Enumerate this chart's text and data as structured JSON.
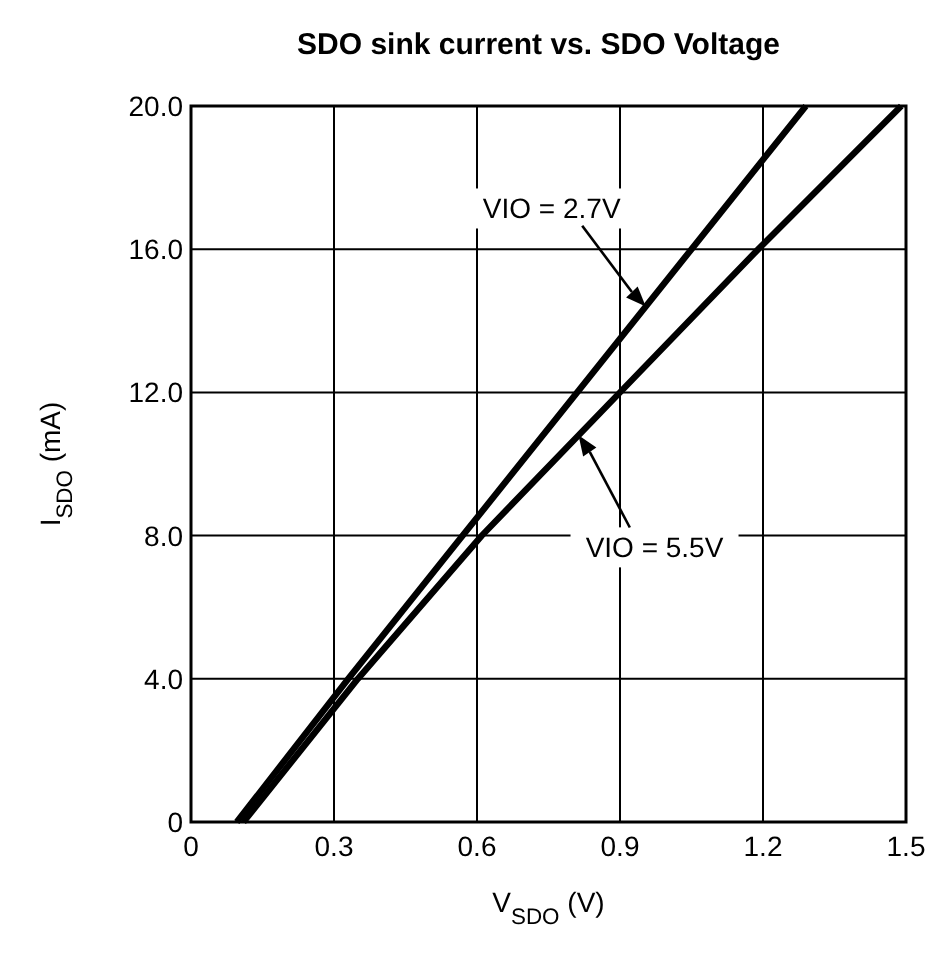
{
  "chart_data": {
    "type": "line",
    "title": "SDO sink current vs. SDO Voltage",
    "xlabel": "V$_{SDO}$ (V)",
    "ylabel": "I$_{SDO}$ (mA)",
    "series": [
      {
        "color": "#000000",
        "x": [
          0.096,
          0.33,
          0.57,
          0.81,
          1.05,
          1.29
        ],
        "values": [
          0,
          4,
          8,
          12,
          16,
          20
        ]
      },
      {
        "color": "#000000",
        "x": [
          0.11,
          0.35,
          0.61,
          0.9,
          1.19,
          1.49
        ],
        "values": [
          0,
          4,
          8,
          12,
          16,
          20
        ]
      }
    ],
    "annotations": [
      "VIO = 2.7V",
      "VIO = 5.5V"
    ],
    "xlim": [
      0,
      1.5
    ],
    "ylim": [
      0,
      20
    ],
    "xticks": [
      0,
      0.3,
      0.6,
      0.9,
      1.2,
      1.5
    ],
    "yticks": [
      {
        "value": 0,
        "label": "0"
      },
      {
        "value": 4,
        "label": "4.0"
      },
      {
        "value": 8,
        "label": "8.0"
      },
      {
        "value": 12,
        "label": "12.0"
      },
      {
        "value": 16,
        "label": "16.0"
      },
      {
        "value": 20,
        "label": "20.0"
      }
    ],
    "grid": true,
    "marker": "none",
    "line_style": "solid"
  }
}
